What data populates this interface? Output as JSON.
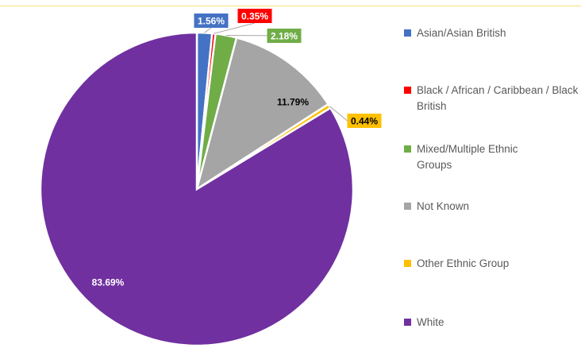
{
  "chart_data": {
    "type": "pie",
    "title": "",
    "labels": [
      "Asian/Asian British",
      "Black / African / Caribbean / Black British",
      "Mixed/Multiple Ethnic Groups",
      "Not Known",
      "Other Ethnic Group",
      "White"
    ],
    "values": [
      1.56,
      0.35,
      2.18,
      11.79,
      0.44,
      83.69
    ],
    "data_labels": [
      "1.56%",
      "0.35%",
      "2.18%",
      "11.79%",
      "0.44%",
      "83.69%"
    ],
    "colors": [
      "#4472c4",
      "#ff0000",
      "#70ad47",
      "#a5a5a5",
      "#ffc000",
      "#7030a0"
    ],
    "legend_position": "right",
    "start_angle_deg": 0,
    "direction": "clockwise"
  },
  "legend": {
    "items": [
      {
        "label": "Asian/Asian British",
        "color": "#4472c4"
      },
      {
        "label": "Black / African / Caribbean / Black British",
        "color": "#ff0000"
      },
      {
        "label": "Mixed/Multiple Ethnic Groups",
        "color": "#70ad47"
      },
      {
        "label": "Not Known",
        "color": "#a5a5a5"
      },
      {
        "label": "Other Ethnic Group",
        "color": "#ffc000"
      },
      {
        "label": "White",
        "color": "#7030a0"
      }
    ]
  }
}
